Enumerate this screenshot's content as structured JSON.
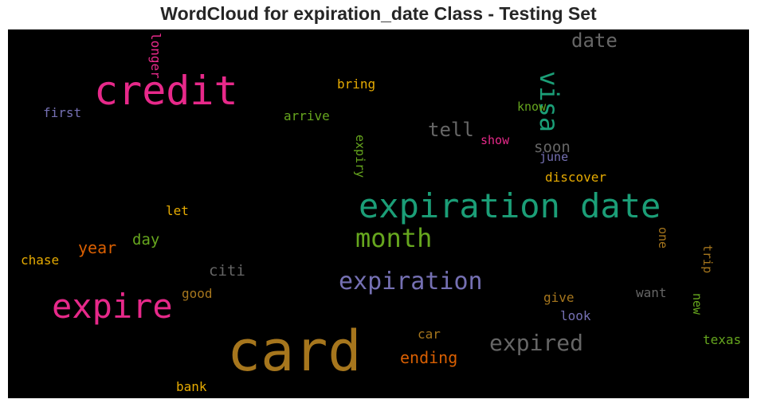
{
  "chart_data": {
    "type": "wordcloud",
    "title": "WordCloud for expiration_date Class - Testing Set",
    "background": "#000000",
    "colormap": "Dark2",
    "words": [
      {
        "text": "card",
        "color": "#a6761d"
      },
      {
        "text": "expiration date",
        "color": "#1b9e77"
      },
      {
        "text": "credit",
        "color": "#e7298a"
      },
      {
        "text": "expire",
        "color": "#e7298a"
      },
      {
        "text": "expiration",
        "color": "#7570b3"
      },
      {
        "text": "month",
        "color": "#66a61e"
      },
      {
        "text": "visa",
        "color": "#1b9e77"
      },
      {
        "text": "expired",
        "color": "#666666"
      },
      {
        "text": "date",
        "color": "#666666"
      },
      {
        "text": "tell",
        "color": "#666666"
      },
      {
        "text": "ending",
        "color": "#d95f02"
      },
      {
        "text": "soon",
        "color": "#666666"
      },
      {
        "text": "year",
        "color": "#d95f02"
      },
      {
        "text": "citi",
        "color": "#666666"
      },
      {
        "text": "day",
        "color": "#66a61e"
      },
      {
        "text": "discover",
        "color": "#e6ab02"
      },
      {
        "text": "bring",
        "color": "#e6ab02"
      },
      {
        "text": "arrive",
        "color": "#66a61e"
      },
      {
        "text": "know",
        "color": "#66a61e"
      },
      {
        "text": "show",
        "color": "#e7298a"
      },
      {
        "text": "june",
        "color": "#7570b3"
      },
      {
        "text": "first",
        "color": "#7570b3"
      },
      {
        "text": "longer",
        "color": "#e7298a"
      },
      {
        "text": "expiry",
        "color": "#66a61e"
      },
      {
        "text": "let",
        "color": "#e6ab02"
      },
      {
        "text": "chase",
        "color": "#e6ab02"
      },
      {
        "text": "good",
        "color": "#a6761d"
      },
      {
        "text": "give",
        "color": "#a6761d"
      },
      {
        "text": "look",
        "color": "#7570b3"
      },
      {
        "text": "want",
        "color": "#666666"
      },
      {
        "text": "one",
        "color": "#a6761d"
      },
      {
        "text": "trip",
        "color": "#a6761d"
      },
      {
        "text": "new",
        "color": "#66a61e"
      },
      {
        "text": "texas",
        "color": "#66a61e"
      },
      {
        "text": "car",
        "color": "#a6761d"
      },
      {
        "text": "bank",
        "color": "#e6ab02"
      }
    ]
  }
}
